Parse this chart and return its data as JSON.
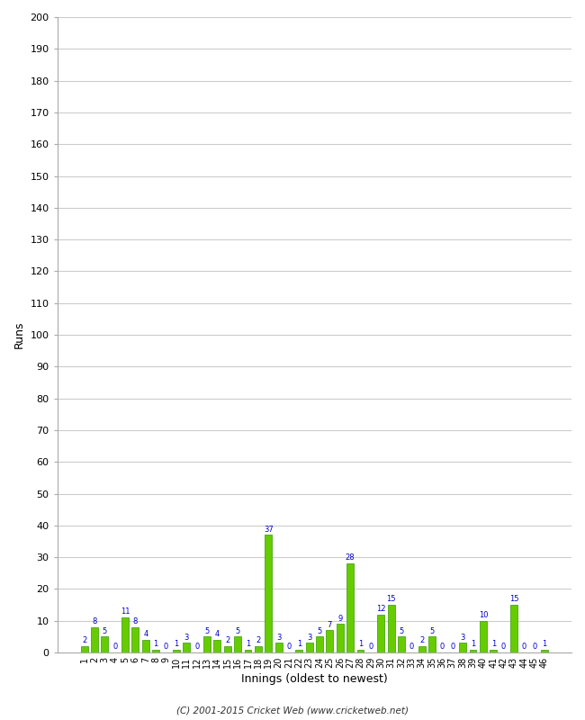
{
  "xlabel": "Innings (oldest to newest)",
  "ylabel": "Runs",
  "innings": [
    1,
    2,
    3,
    4,
    5,
    6,
    7,
    8,
    9,
    10,
    11,
    12,
    13,
    14,
    15,
    16,
    17,
    18,
    19,
    20,
    21,
    22,
    23,
    24,
    25,
    26,
    27,
    28,
    29,
    30,
    31,
    32,
    33,
    34,
    35,
    36,
    37,
    38,
    39,
    40,
    41,
    42,
    43,
    44,
    45,
    46
  ],
  "values": [
    2,
    8,
    5,
    0,
    11,
    8,
    4,
    1,
    0,
    1,
    3,
    0,
    5,
    4,
    2,
    5,
    1,
    2,
    37,
    3,
    0,
    1,
    3,
    5,
    7,
    9,
    28,
    1,
    0,
    12,
    15,
    5,
    0,
    2,
    5,
    0,
    0,
    3,
    1,
    10,
    1,
    0,
    15,
    0,
    0,
    1
  ],
  "bar_color": "#66cc00",
  "bar_edge_color": "#339900",
  "label_color": "#0000cc",
  "ylim": [
    0,
    200
  ],
  "yticks": [
    0,
    10,
    20,
    30,
    40,
    50,
    60,
    70,
    80,
    90,
    100,
    110,
    120,
    130,
    140,
    150,
    160,
    170,
    180,
    190,
    200
  ],
  "footer": "(C) 2001-2015 Cricket Web (www.cricketweb.net)",
  "bg_color": "#ffffff",
  "grid_color": "#cccccc"
}
